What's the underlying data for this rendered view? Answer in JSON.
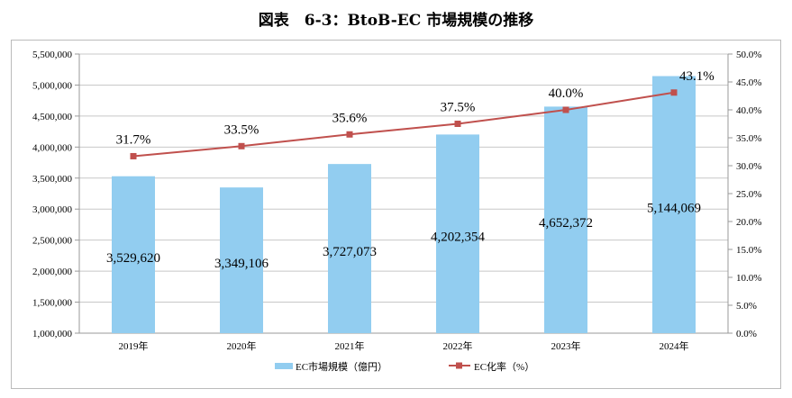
{
  "chart_data": {
    "type": "bar+line",
    "title": "図表　6-3：BtoB-EC 市場規模の推移",
    "categories": [
      "2019年",
      "2020年",
      "2021年",
      "2022年",
      "2023年",
      "2024年"
    ],
    "series": [
      {
        "name": "EC市場規模（億円）",
        "type": "bar",
        "axis": "left",
        "color": "#92cdf0",
        "values": [
          3529620,
          3349106,
          3727073,
          4202354,
          4652372,
          5144069
        ],
        "labels": [
          "3,529,620",
          "3,349,106",
          "3,727,073",
          "4,202,354",
          "4,652,372",
          "5,144,069"
        ]
      },
      {
        "name": "EC化率（%）",
        "type": "line",
        "axis": "right",
        "color": "#c0504d",
        "values": [
          31.7,
          33.5,
          35.6,
          37.5,
          40.0,
          43.1
        ],
        "labels": [
          "31.7%",
          "33.5%",
          "35.6%",
          "37.5%",
          "40.0%",
          "43.1%"
        ]
      }
    ],
    "y_left": {
      "range": [
        1000000,
        5500000
      ],
      "ticks": [
        "1,000,000",
        "1,500,000",
        "2,000,000",
        "2,500,000",
        "3,000,000",
        "3,500,000",
        "4,000,000",
        "4,500,000",
        "5,000,000",
        "5,500,000"
      ]
    },
    "y_right": {
      "range": [
        0,
        50
      ],
      "ticks": [
        "0.0%",
        "5.0%",
        "10.0%",
        "15.0%",
        "20.0%",
        "25.0%",
        "30.0%",
        "35.0%",
        "40.0%",
        "45.0%",
        "50.0%"
      ]
    },
    "grid": true,
    "legend": "bottom"
  }
}
